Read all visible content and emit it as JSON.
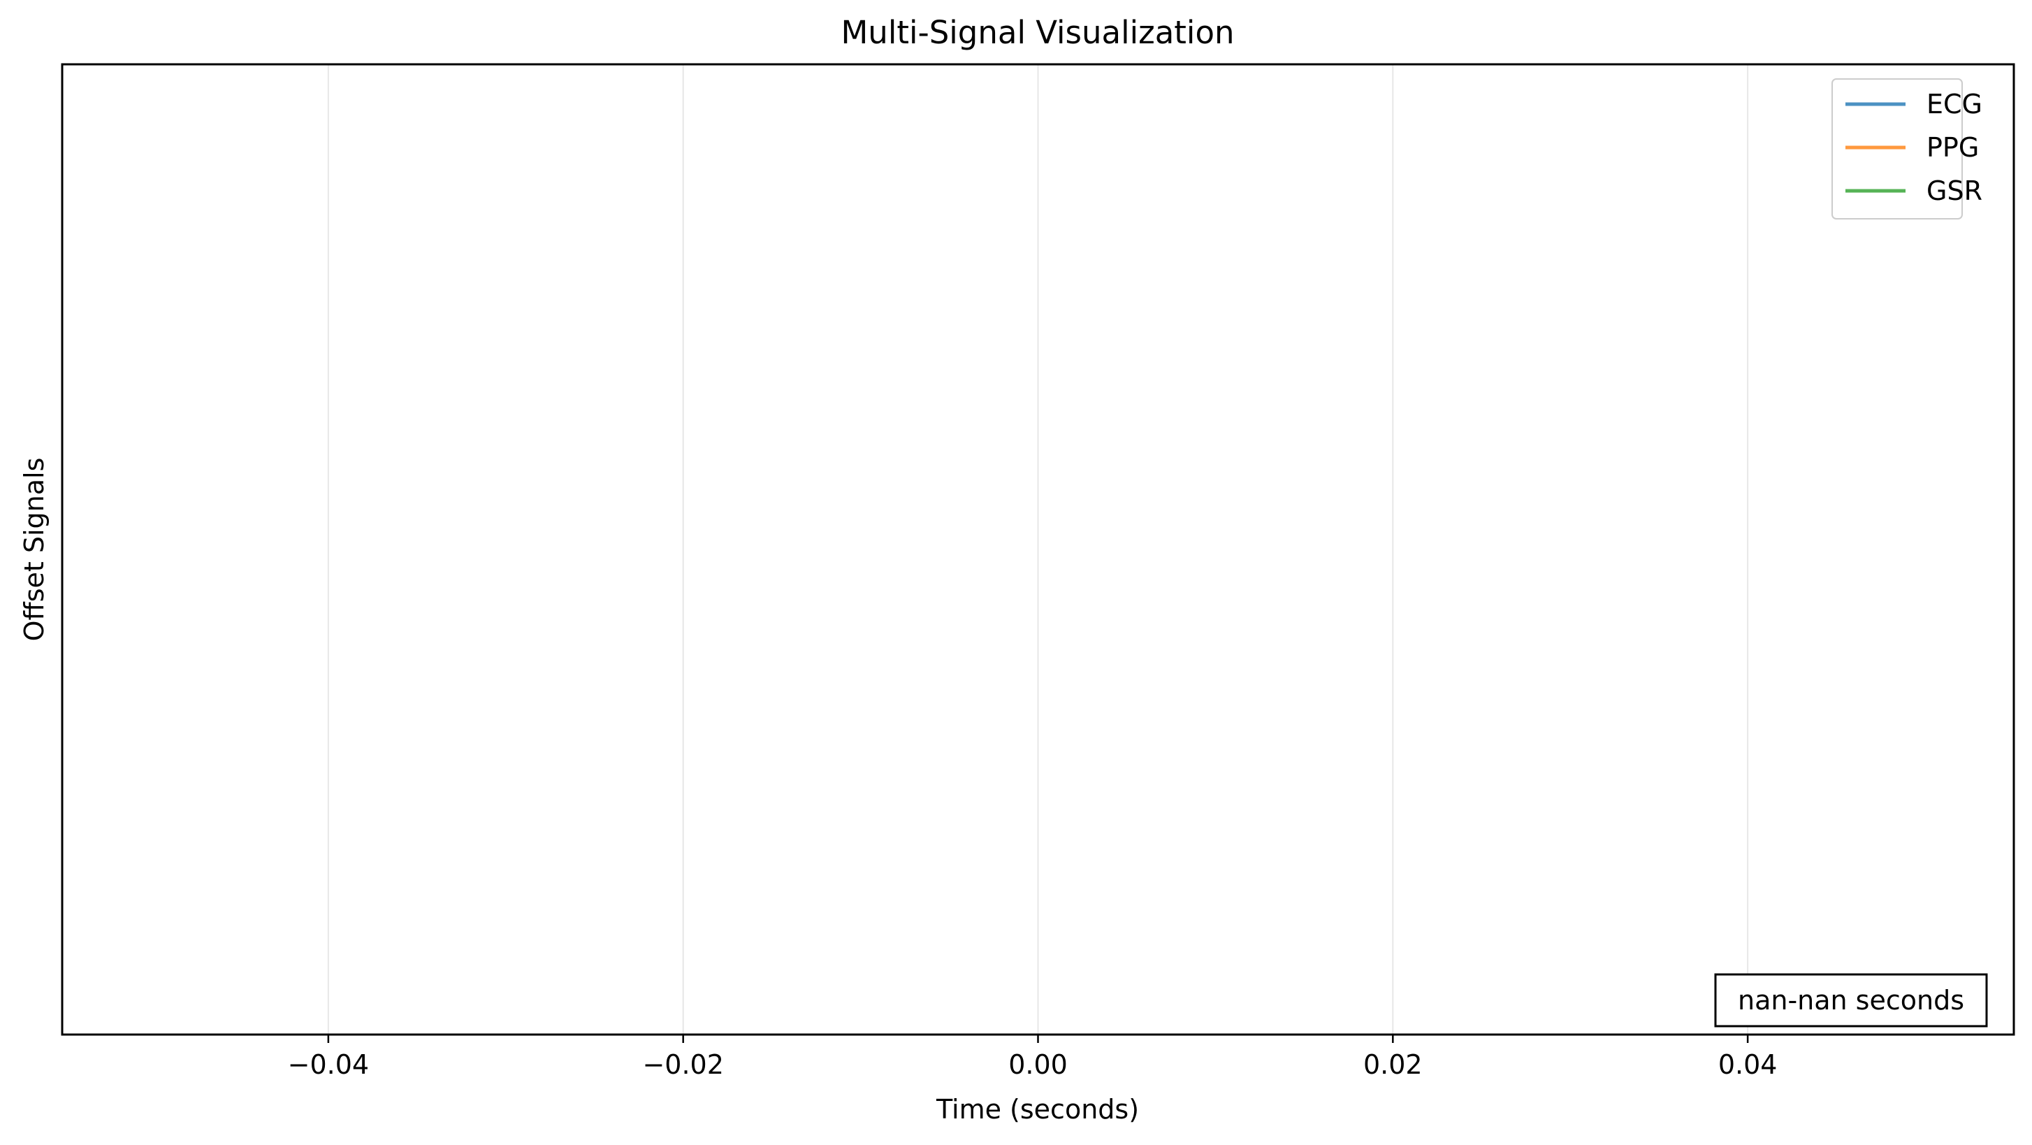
{
  "chart_data": {
    "type": "line",
    "title": "Multi-Signal Visualization",
    "xlabel": "Time (seconds)",
    "ylabel": "Offset Signals",
    "xlim": [
      -0.055,
      0.055
    ],
    "xticks": [
      -0.04,
      -0.02,
      0.0,
      0.02,
      0.04
    ],
    "xtick_labels": [
      "−0.04",
      "−0.02",
      "0.00",
      "0.02",
      "0.04"
    ],
    "yticks": [],
    "grid": "x-only",
    "legend_position": "top-right",
    "series": [
      {
        "name": "ECG",
        "color": "#1f77b4",
        "x": [],
        "y": []
      },
      {
        "name": "PPG",
        "color": "#ff7f0e",
        "x": [],
        "y": []
      },
      {
        "name": "GSR",
        "color": "#2ca02c",
        "x": [],
        "y": []
      }
    ],
    "annotation": "nan-nan seconds"
  }
}
